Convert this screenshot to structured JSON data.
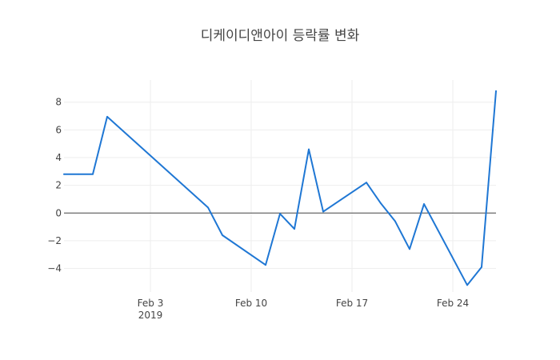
{
  "chart_data": {
    "type": "line",
    "title": "디케이디앤아이 등락률 변화",
    "xlabel": "",
    "ylabel": "",
    "x_axis_type": "date",
    "x": [
      "2019-01-28",
      "2019-01-29",
      "2019-01-30",
      "2019-01-31",
      "2019-02-07",
      "2019-02-08",
      "2019-02-11",
      "2019-02-12",
      "2019-02-13",
      "2019-02-14",
      "2019-02-15",
      "2019-02-18",
      "2019-02-19",
      "2019-02-20",
      "2019-02-21",
      "2019-02-22",
      "2019-02-25",
      "2019-02-26",
      "2019-02-27"
    ],
    "series": [
      {
        "color": "#1f77d4",
        "values": [
          2.8,
          2.8,
          2.8,
          6.95,
          0.4,
          -1.6,
          -3.75,
          -0.05,
          -1.15,
          4.6,
          0.1,
          2.2,
          0.7,
          -0.6,
          -2.6,
          0.65,
          -5.2,
          -3.9,
          8.8
        ]
      }
    ],
    "xlim": [
      "2019-01-28",
      "2019-02-27"
    ],
    "ylim": [
      -5.7,
      9.6
    ],
    "x_ticks": [
      {
        "value": "2019-02-03",
        "label": "Feb 3",
        "sublabel": "2019"
      },
      {
        "value": "2019-02-10",
        "label": "Feb 10",
        "sublabel": ""
      },
      {
        "value": "2019-02-17",
        "label": "Feb 17",
        "sublabel": ""
      },
      {
        "value": "2019-02-24",
        "label": "Feb 24",
        "sublabel": ""
      }
    ],
    "y_ticks": [
      {
        "value": 8,
        "label": "8"
      },
      {
        "value": 6,
        "label": "6"
      },
      {
        "value": 4,
        "label": "4"
      },
      {
        "value": 2,
        "label": "2"
      },
      {
        "value": 0,
        "label": "0"
      },
      {
        "value": -2,
        "label": "−2"
      },
      {
        "value": -4,
        "label": "−4"
      }
    ],
    "grid": true,
    "zero_line": true,
    "legend": false
  }
}
